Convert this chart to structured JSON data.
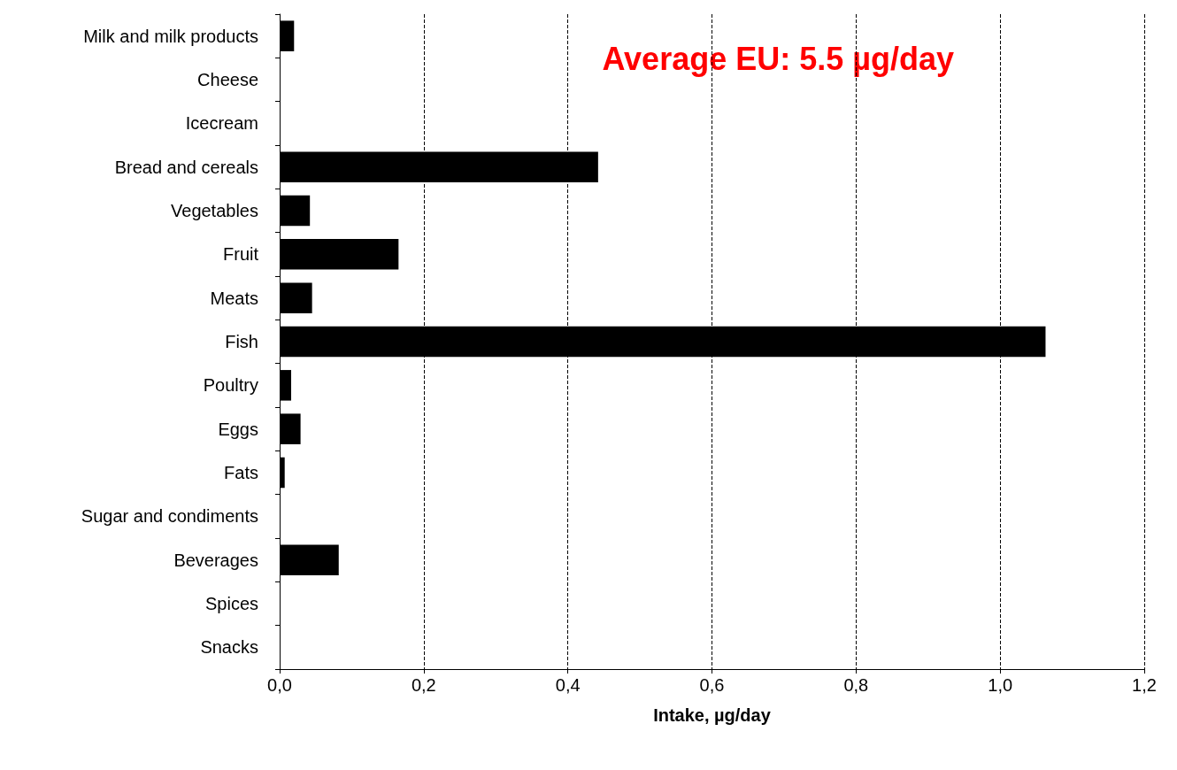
{
  "chart_data": {
    "type": "bar",
    "orientation": "horizontal",
    "xlabel": "Intake, µg/day",
    "categories": [
      "Milk and milk products",
      "Cheese",
      "Icecream",
      "Bread and cereals",
      "Vegetables",
      "Fruit",
      "Meats",
      "Fish",
      "Poultry",
      "Eggs",
      "Fats",
      "Sugar and condiments",
      "Beverages",
      "Spices",
      "Snacks"
    ],
    "values": [
      0.02,
      0,
      0,
      0.442,
      0.042,
      0.165,
      0.045,
      1.063,
      0.016,
      0.029,
      0.007,
      0,
      0.082,
      0,
      0
    ],
    "color": "#000000",
    "xlim": [
      0,
      1.2
    ],
    "xticks": [
      {
        "value": 0,
        "label": "0,0"
      },
      {
        "value": 0.2,
        "label": "0,2"
      },
      {
        "value": 0.4,
        "label": "0,4"
      },
      {
        "value": 0.6,
        "label": "0,6"
      },
      {
        "value": 0.8,
        "label": "0,8"
      },
      {
        "value": 1,
        "label": "1,0"
      },
      {
        "value": 1.2,
        "label": "1,2"
      }
    ],
    "grid": "x",
    "annotations": [
      "Average EU: 5.5 µg/day"
    ]
  }
}
